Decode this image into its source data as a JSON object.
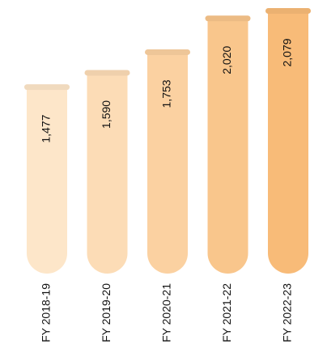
{
  "chart_data": {
    "type": "bar",
    "categories": [
      "FY 2018-19",
      "FY 2019-20",
      "FY 2020-21",
      "FY 2021-22",
      "FY 2022-23"
    ],
    "values": [
      1477,
      1590,
      1753,
      2020,
      2079
    ],
    "value_labels": [
      "1,477",
      "1,590",
      "1,753",
      "2,020",
      "2,079"
    ],
    "colors": [
      "#fde6c9",
      "#fcdcb6",
      "#fbd1a1",
      "#f9c68c",
      "#f8bb78"
    ]
  }
}
